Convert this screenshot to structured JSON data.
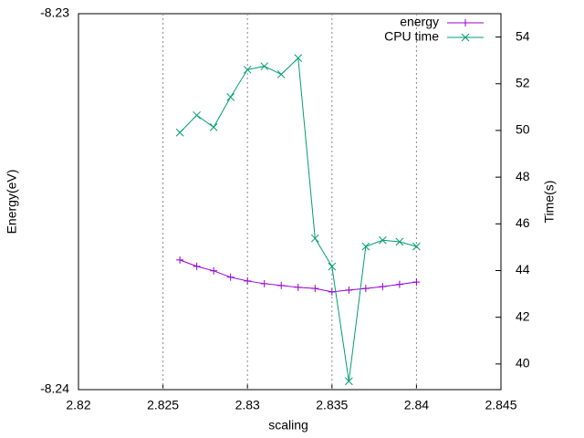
{
  "chart_data": {
    "type": "line",
    "xlabel": "scaling",
    "ylabel": "Energy(eV)",
    "y2label": "Time(s)",
    "x": [
      2.826,
      2.827,
      2.828,
      2.829,
      2.83,
      2.831,
      2.832,
      2.833,
      2.834,
      2.835,
      2.836,
      2.837,
      2.838,
      2.839,
      2.84
    ],
    "series": [
      {
        "name": "energy",
        "color": "#9400d3",
        "marker": "+",
        "axis": "y",
        "values": [
          -8.23655,
          -8.23672,
          -8.23684,
          -8.23701,
          -8.23711,
          -8.23718,
          -8.23723,
          -8.23728,
          -8.23731,
          -8.2374,
          -8.23735,
          -8.23731,
          -8.23726,
          -8.2372,
          -8.23714
        ]
      },
      {
        "name": "CPU time",
        "color": "#009e73",
        "marker": "x",
        "axis": "y2",
        "values": [
          49.91,
          50.65,
          50.14,
          51.43,
          52.6,
          52.75,
          52.4,
          53.1,
          45.38,
          44.17,
          39.26,
          45.03,
          45.3,
          45.23,
          45.03
        ]
      }
    ],
    "xlim": [
      2.82,
      2.845
    ],
    "xticks": [
      2.82,
      2.825,
      2.83,
      2.835,
      2.84,
      2.845
    ],
    "ylim": [
      -8.24,
      -8.23
    ],
    "yticks": [
      -8.23,
      -8.24
    ],
    "y2lim": [
      38.9,
      55
    ],
    "y2ticks": [
      40,
      42,
      44,
      46,
      48,
      50,
      52,
      54
    ],
    "grid": "x",
    "legend": "top right"
  }
}
